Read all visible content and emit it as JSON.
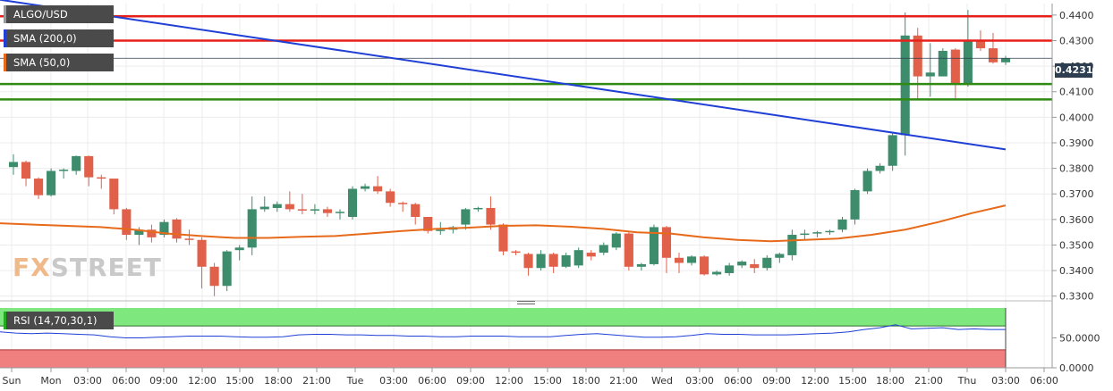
{
  "legend": {
    "symbol": "ALGO/USD",
    "sma200": "SMA (200,0)",
    "sma50": "SMA (50,0)",
    "rsi": "RSI (14,70,30,1)"
  },
  "logo": {
    "part1": "FX",
    "part2": "STREET"
  },
  "price_label": "0.4231",
  "colors": {
    "up": "#3d8c6c",
    "down": "#e0604a",
    "sma200": "#1f3fd6",
    "sma50": "#e66a1a",
    "resistance": "#e8201c",
    "support": "#2f8a12",
    "rsi_over": "#7ee87e",
    "rsi_under": "#f07f7f"
  },
  "chart_data": [
    {
      "type": "candlestick",
      "symbol": "ALGO/USD",
      "y_ticks": [
        "0.4400",
        "0.4300",
        "0.4200",
        "0.4100",
        "0.4000",
        "0.3900",
        "0.3800",
        "0.3700",
        "0.3600",
        "0.3500",
        "0.3400",
        "0.3300"
      ],
      "ylim": [
        0.3285,
        0.4445
      ],
      "current_price": 0.4231,
      "x_ticks": [
        "Sun",
        "Mon",
        "03:00",
        "06:00",
        "09:00",
        "12:00",
        "15:00",
        "18:00",
        "21:00",
        "Tue",
        "03:00",
        "06:00",
        "09:00",
        "12:00",
        "15:00",
        "18:00",
        "21:00",
        "Wed",
        "03:00",
        "06:00",
        "09:00",
        "12:00",
        "15:00",
        "18:00",
        "21:00",
        "Thu",
        "03:00",
        "06:00"
      ],
      "candles": [
        {
          "o": 0.3805,
          "h": 0.3855,
          "l": 0.3775,
          "c": 0.3825
        },
        {
          "o": 0.3825,
          "h": 0.383,
          "l": 0.373,
          "c": 0.376
        },
        {
          "o": 0.376,
          "h": 0.3765,
          "l": 0.368,
          "c": 0.3695
        },
        {
          "o": 0.3695,
          "h": 0.38,
          "l": 0.369,
          "c": 0.379
        },
        {
          "o": 0.379,
          "h": 0.38,
          "l": 0.376,
          "c": 0.3795
        },
        {
          "o": 0.379,
          "h": 0.385,
          "l": 0.3775,
          "c": 0.3848
        },
        {
          "o": 0.3848,
          "h": 0.385,
          "l": 0.373,
          "c": 0.3765
        },
        {
          "o": 0.3765,
          "h": 0.3775,
          "l": 0.372,
          "c": 0.376
        },
        {
          "o": 0.376,
          "h": 0.375,
          "l": 0.362,
          "c": 0.364
        },
        {
          "o": 0.364,
          "h": 0.3645,
          "l": 0.352,
          "c": 0.354
        },
        {
          "o": 0.354,
          "h": 0.357,
          "l": 0.35,
          "c": 0.356
        },
        {
          "o": 0.356,
          "h": 0.358,
          "l": 0.351,
          "c": 0.353
        },
        {
          "o": 0.354,
          "h": 0.36,
          "l": 0.353,
          "c": 0.359
        },
        {
          "o": 0.36,
          "h": 0.3605,
          "l": 0.351,
          "c": 0.3525
        },
        {
          "o": 0.3525,
          "h": 0.356,
          "l": 0.35,
          "c": 0.352
        },
        {
          "o": 0.352,
          "h": 0.353,
          "l": 0.333,
          "c": 0.3415
        },
        {
          "o": 0.3415,
          "h": 0.343,
          "l": 0.33,
          "c": 0.334
        },
        {
          "o": 0.334,
          "h": 0.348,
          "l": 0.332,
          "c": 0.3475
        },
        {
          "o": 0.348,
          "h": 0.35,
          "l": 0.344,
          "c": 0.349
        },
        {
          "o": 0.349,
          "h": 0.369,
          "l": 0.346,
          "c": 0.364
        },
        {
          "o": 0.364,
          "h": 0.369,
          "l": 0.363,
          "c": 0.365
        },
        {
          "o": 0.3645,
          "h": 0.367,
          "l": 0.363,
          "c": 0.366
        },
        {
          "o": 0.366,
          "h": 0.371,
          "l": 0.363,
          "c": 0.364
        },
        {
          "o": 0.364,
          "h": 0.37,
          "l": 0.362,
          "c": 0.3635
        },
        {
          "o": 0.3635,
          "h": 0.366,
          "l": 0.362,
          "c": 0.364
        },
        {
          "o": 0.364,
          "h": 0.365,
          "l": 0.361,
          "c": 0.3625
        },
        {
          "o": 0.3625,
          "h": 0.364,
          "l": 0.36,
          "c": 0.363
        },
        {
          "o": 0.361,
          "h": 0.373,
          "l": 0.36,
          "c": 0.372
        },
        {
          "o": 0.372,
          "h": 0.374,
          "l": 0.371,
          "c": 0.373
        },
        {
          "o": 0.373,
          "h": 0.377,
          "l": 0.37,
          "c": 0.371
        },
        {
          "o": 0.371,
          "h": 0.372,
          "l": 0.365,
          "c": 0.3665
        },
        {
          "o": 0.3665,
          "h": 0.367,
          "l": 0.363,
          "c": 0.366
        },
        {
          "o": 0.366,
          "h": 0.3665,
          "l": 0.358,
          "c": 0.361
        },
        {
          "o": 0.361,
          "h": 0.361,
          "l": 0.3545,
          "c": 0.3555
        },
        {
          "o": 0.3555,
          "h": 0.359,
          "l": 0.354,
          "c": 0.356
        },
        {
          "o": 0.356,
          "h": 0.3575,
          "l": 0.3545,
          "c": 0.357
        },
        {
          "o": 0.358,
          "h": 0.3645,
          "l": 0.356,
          "c": 0.364
        },
        {
          "o": 0.364,
          "h": 0.365,
          "l": 0.363,
          "c": 0.3645
        },
        {
          "o": 0.3645,
          "h": 0.369,
          "l": 0.356,
          "c": 0.358
        },
        {
          "o": 0.358,
          "h": 0.3585,
          "l": 0.346,
          "c": 0.3475
        },
        {
          "o": 0.3475,
          "h": 0.348,
          "l": 0.346,
          "c": 0.347
        },
        {
          "o": 0.3465,
          "h": 0.347,
          "l": 0.338,
          "c": 0.341
        },
        {
          "o": 0.341,
          "h": 0.348,
          "l": 0.34,
          "c": 0.3465
        },
        {
          "o": 0.3465,
          "h": 0.347,
          "l": 0.339,
          "c": 0.3415
        },
        {
          "o": 0.3415,
          "h": 0.347,
          "l": 0.341,
          "c": 0.346
        },
        {
          "o": 0.342,
          "h": 0.349,
          "l": 0.341,
          "c": 0.348
        },
        {
          "o": 0.347,
          "h": 0.348,
          "l": 0.344,
          "c": 0.3455
        },
        {
          "o": 0.347,
          "h": 0.351,
          "l": 0.346,
          "c": 0.35
        },
        {
          "o": 0.349,
          "h": 0.355,
          "l": 0.348,
          "c": 0.3545
        },
        {
          "o": 0.3545,
          "h": 0.355,
          "l": 0.34,
          "c": 0.3415
        },
        {
          "o": 0.3415,
          "h": 0.343,
          "l": 0.34,
          "c": 0.3425
        },
        {
          "o": 0.3425,
          "h": 0.358,
          "l": 0.342,
          "c": 0.357
        },
        {
          "o": 0.357,
          "h": 0.3575,
          "l": 0.339,
          "c": 0.345
        },
        {
          "o": 0.345,
          "h": 0.347,
          "l": 0.339,
          "c": 0.343
        },
        {
          "o": 0.343,
          "h": 0.346,
          "l": 0.342,
          "c": 0.3455
        },
        {
          "o": 0.3455,
          "h": 0.346,
          "l": 0.338,
          "c": 0.3385
        },
        {
          "o": 0.3385,
          "h": 0.34,
          "l": 0.338,
          "c": 0.3395
        },
        {
          "o": 0.339,
          "h": 0.343,
          "l": 0.338,
          "c": 0.342
        },
        {
          "o": 0.342,
          "h": 0.344,
          "l": 0.341,
          "c": 0.3435
        },
        {
          "o": 0.3425,
          "h": 0.3445,
          "l": 0.339,
          "c": 0.341
        },
        {
          "o": 0.341,
          "h": 0.346,
          "l": 0.34,
          "c": 0.345
        },
        {
          "o": 0.345,
          "h": 0.347,
          "l": 0.343,
          "c": 0.3465
        },
        {
          "o": 0.346,
          "h": 0.356,
          "l": 0.344,
          "c": 0.354
        },
        {
          "o": 0.354,
          "h": 0.356,
          "l": 0.352,
          "c": 0.3545
        },
        {
          "o": 0.3545,
          "h": 0.3555,
          "l": 0.353,
          "c": 0.355
        },
        {
          "o": 0.355,
          "h": 0.356,
          "l": 0.354,
          "c": 0.3555
        },
        {
          "o": 0.356,
          "h": 0.361,
          "l": 0.355,
          "c": 0.36
        },
        {
          "o": 0.36,
          "h": 0.372,
          "l": 0.358,
          "c": 0.3715
        },
        {
          "o": 0.371,
          "h": 0.38,
          "l": 0.37,
          "c": 0.379
        },
        {
          "o": 0.379,
          "h": 0.382,
          "l": 0.378,
          "c": 0.381
        },
        {
          "o": 0.381,
          "h": 0.394,
          "l": 0.379,
          "c": 0.393
        },
        {
          "o": 0.393,
          "h": 0.441,
          "l": 0.385,
          "c": 0.432
        },
        {
          "o": 0.432,
          "h": 0.435,
          "l": 0.407,
          "c": 0.416
        },
        {
          "o": 0.416,
          "h": 0.429,
          "l": 0.408,
          "c": 0.4175
        },
        {
          "o": 0.416,
          "h": 0.427,
          "l": 0.416,
          "c": 0.426
        },
        {
          "o": 0.4265,
          "h": 0.427,
          "l": 0.407,
          "c": 0.413
        },
        {
          "o": 0.413,
          "h": 0.442,
          "l": 0.412,
          "c": 0.43
        },
        {
          "o": 0.43,
          "h": 0.434,
          "l": 0.426,
          "c": 0.427
        },
        {
          "o": 0.427,
          "h": 0.433,
          "l": 0.421,
          "c": 0.4215
        },
        {
          "o": 0.4215,
          "h": 0.424,
          "l": 0.4205,
          "c": 0.4231
        }
      ],
      "series": [
        {
          "name": "SMA (200,0)",
          "values": [
            0.446,
            0.3874
          ]
        },
        {
          "name": "SMA (50,0)",
          "values": [
            0.3585,
            0.358,
            0.3575,
            0.357,
            0.356,
            0.3545,
            0.3535,
            0.3528,
            0.3528,
            0.3532,
            0.3535,
            0.3545,
            0.3555,
            0.3563,
            0.3568,
            0.3575,
            0.3577,
            0.3572,
            0.3563,
            0.355,
            0.3545,
            0.353,
            0.352,
            0.3515,
            0.352,
            0.3525,
            0.354,
            0.356,
            0.359,
            0.3625,
            0.3655
          ]
        }
      ],
      "horizontal_lines": [
        0.4395,
        0.43,
        0.413,
        0.407
      ]
    },
    {
      "type": "line",
      "name": "RSI (14,70,30,1)",
      "y_ticks": [
        "50.0000",
        "0.0000"
      ],
      "ylim": [
        0,
        100
      ],
      "overbought": 70,
      "oversold": 30,
      "values": [
        60,
        58,
        57,
        58,
        57,
        56,
        55,
        52,
        50,
        50,
        51,
        52,
        53,
        53,
        53,
        52,
        51,
        51,
        52,
        55,
        56,
        56,
        55,
        55,
        54,
        54,
        53,
        53,
        52,
        52,
        53,
        53,
        53,
        52,
        52,
        52,
        54,
        56,
        57,
        55,
        53,
        51,
        51,
        52,
        54,
        57,
        56,
        56,
        55,
        55,
        55,
        56,
        57,
        58,
        60,
        64,
        67,
        72,
        65,
        66,
        67,
        64,
        65,
        64,
        64
      ]
    }
  ]
}
